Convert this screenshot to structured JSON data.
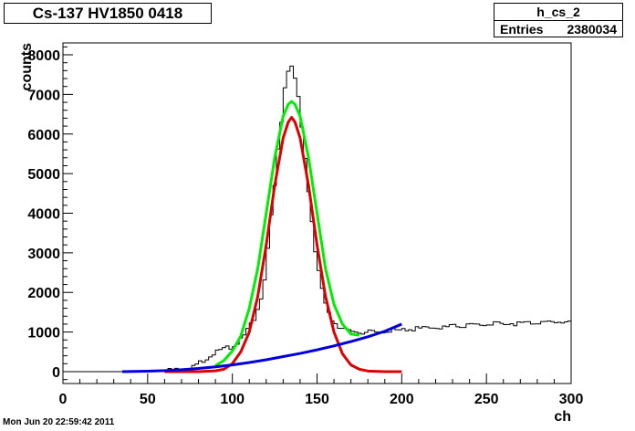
{
  "title": "Cs-137 HV1850 0418",
  "stats": {
    "name": "h_cs_2",
    "entries_label": "Entries",
    "entries_value": "2380034"
  },
  "timestamp": "Mon Jun 20 22:59:42 2011",
  "chart_data": {
    "type": "line",
    "xlabel": "ch",
    "ylabel": "counts",
    "xlim": [
      0,
      300
    ],
    "ylim": [
      -300,
      8300
    ],
    "x_ticks": [
      0,
      50,
      100,
      150,
      200,
      250,
      300
    ],
    "y_ticks": [
      0,
      1000,
      2000,
      3000,
      4000,
      5000,
      6000,
      7000,
      8000
    ],
    "grid": false,
    "series": [
      {
        "kind": "histogram",
        "color": "#000000",
        "x": [
          0,
          10,
          20,
          30,
          40,
          50,
          60,
          70,
          75,
          80,
          85,
          90,
          95,
          100,
          105,
          108,
          110,
          113,
          115,
          118,
          120,
          122,
          125,
          127,
          129,
          130,
          131,
          132,
          133,
          134,
          135,
          136,
          137,
          138,
          139,
          140,
          142,
          144,
          146,
          148,
          150,
          153,
          155,
          158,
          160,
          163,
          165,
          168,
          170,
          175,
          180,
          185,
          190,
          200,
          210,
          220,
          230,
          240,
          250,
          260,
          270,
          280,
          290,
          300
        ],
        "values": [
          0,
          0,
          0,
          0,
          0,
          5,
          20,
          60,
          110,
          200,
          350,
          480,
          560,
          640,
          820,
          950,
          1150,
          1350,
          1600,
          2000,
          2700,
          3500,
          4700,
          5600,
          6300,
          6800,
          7200,
          7500,
          7600,
          7650,
          7680,
          7600,
          7400,
          7200,
          6900,
          6500,
          5800,
          5000,
          4200,
          3400,
          2700,
          2100,
          1700,
          1400,
          1250,
          1150,
          1080,
          1040,
          1020,
          1000,
          990,
          1000,
          1010,
          1050,
          1080,
          1110,
          1140,
          1170,
          1190,
          1210,
          1220,
          1240,
          1250,
          1260
        ]
      },
      {
        "kind": "fit",
        "color": "#00ee00",
        "x": [
          90,
          95,
          100,
          105,
          110,
          115,
          120,
          125,
          130,
          133,
          135,
          137,
          140,
          145,
          150,
          155,
          160,
          165,
          170,
          175
        ],
        "values": [
          150,
          280,
          520,
          900,
          1600,
          2600,
          4000,
          5400,
          6450,
          6750,
          6820,
          6750,
          6450,
          5400,
          4000,
          2600,
          1700,
          1200,
          950,
          920
        ]
      },
      {
        "kind": "fit",
        "color": "#dd0000",
        "x": [
          60,
          80,
          90,
          95,
          100,
          105,
          110,
          115,
          120,
          125,
          130,
          133,
          135,
          137,
          140,
          145,
          150,
          155,
          160,
          165,
          170,
          175,
          180,
          190,
          200
        ],
        "values": [
          0,
          0,
          20,
          60,
          200,
          500,
          1000,
          1900,
          3200,
          4700,
          5900,
          6300,
          6420,
          6300,
          5900,
          4700,
          3200,
          1900,
          1000,
          450,
          170,
          60,
          15,
          0,
          0
        ]
      },
      {
        "kind": "fit",
        "color": "#0000dd",
        "x": [
          35,
          50,
          60,
          70,
          80,
          90,
          100,
          110,
          120,
          130,
          140,
          150,
          160,
          170,
          180,
          190,
          200
        ],
        "values": [
          0,
          10,
          25,
          50,
          80,
          120,
          170,
          230,
          300,
          380,
          460,
          550,
          650,
          760,
          880,
          1020,
          1200
        ]
      }
    ]
  }
}
